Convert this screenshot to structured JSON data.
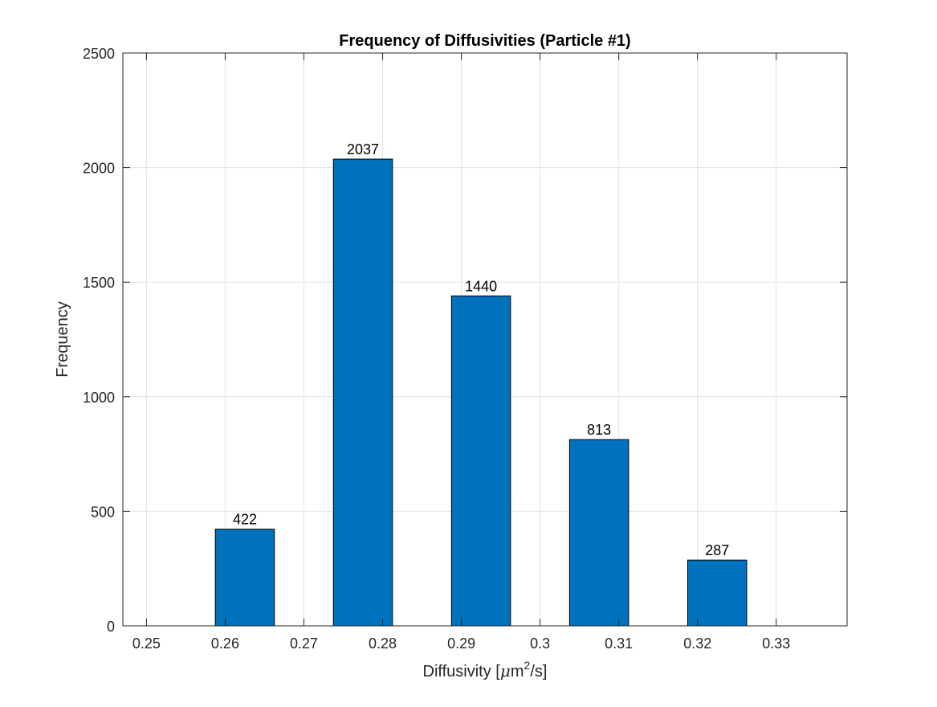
{
  "chart_data": {
    "type": "bar",
    "title": "Frequency of Diffusivities (Particle #1)",
    "xlabel": {
      "prefix": "Diffusivity [",
      "mu": "μ",
      "unit_base": "m",
      "superscript": "2",
      "suffix": "/s]"
    },
    "ylabel": "Frequency",
    "x_centers": [
      0.2625,
      0.2775,
      0.2925,
      0.3075,
      0.3225
    ],
    "bar_width": 0.0075,
    "values": [
      422,
      2037,
      1440,
      813,
      287
    ],
    "data_labels": [
      "422",
      "2037",
      "1440",
      "813",
      "287"
    ],
    "xlim": [
      0.247,
      0.339
    ],
    "ylim": [
      0,
      2500
    ],
    "x_ticks": [
      0.25,
      0.26,
      0.27,
      0.28,
      0.29,
      0.3,
      0.31,
      0.32,
      0.33
    ],
    "x_tick_labels": [
      "0.25",
      "0.26",
      "0.27",
      "0.28",
      "0.29",
      "0.3",
      "0.31",
      "0.32",
      "0.33"
    ],
    "y_ticks": [
      0,
      500,
      1000,
      1500,
      2000,
      2500
    ],
    "y_tick_labels": [
      "0",
      "500",
      "1000",
      "1500",
      "2000",
      "2500"
    ],
    "grid": true,
    "bar_color": "#0072BD",
    "bar_edge_color": "#000000"
  }
}
